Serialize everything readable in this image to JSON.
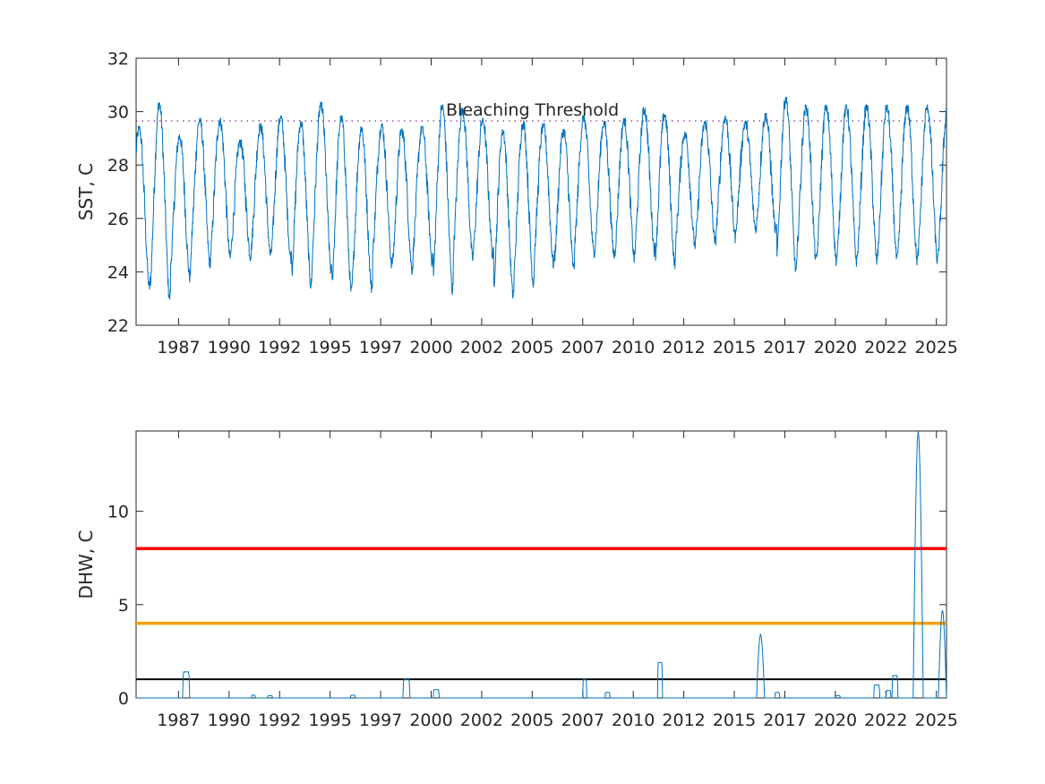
{
  "chart_data": [
    {
      "type": "line",
      "ylabel": "SST, C",
      "ylim": [
        22,
        32
      ],
      "yticks": [
        22,
        24,
        26,
        28,
        30,
        32
      ],
      "xlim": [
        1985.0,
        2025.1
      ],
      "xtick_positions": [
        1987.1,
        1989.6,
        1992.1,
        1994.6,
        1997.1,
        1999.6,
        2002.1,
        2004.6,
        2007.1,
        2009.6,
        2012.1,
        2014.6,
        2017.1,
        2019.6,
        2022.1,
        2024.6
      ],
      "xtick_labels": [
        "1987",
        "1990",
        "1992",
        "1995",
        "1997",
        "2000",
        "2002",
        "2005",
        "2007",
        "2010",
        "2012",
        "2015",
        "2017",
        "2020",
        "2022",
        "2025"
      ],
      "annotation": "Bleaching Threshold",
      "threshold": 29.65,
      "series_color": "#0072BD",
      "threshold_color": "#7E2F8E",
      "yearly_peaks": [
        29.4,
        30.3,
        29.1,
        29.7,
        29.7,
        28.9,
        29.5,
        29.8,
        29.6,
        30.3,
        29.8,
        29.4,
        29.5,
        29.3,
        29.4,
        30.2,
        30.1,
        29.7,
        29.3,
        29.6,
        29.5,
        29.3,
        29.8,
        29.6,
        29.7,
        30.1,
        29.9,
        29.2,
        29.6,
        29.8,
        29.6,
        29.9,
        30.5,
        30.2
      ],
      "yearly_troughs": [
        23.4,
        23.0,
        23.8,
        24.3,
        24.5,
        24.6,
        24.6,
        24.5,
        23.5,
        24.0,
        23.2,
        23.4,
        24.3,
        24.1,
        24.4,
        23.3,
        24.5,
        24.6,
        23.1,
        23.6,
        24.3,
        24.1,
        24.7,
        24.6,
        24.5,
        24.8,
        24.3,
        25.0,
        25.1,
        25.3,
        25.6,
        25.5,
        24.0,
        24.4
      ]
    },
    {
      "type": "line",
      "ylabel": "DHW, C",
      "ylim": [
        0,
        14.3
      ],
      "yticks": [
        0,
        5,
        10
      ],
      "xlim": [
        1985.0,
        2025.1
      ],
      "xtick_positions": [
        1987.1,
        1989.6,
        1992.1,
        1994.6,
        1997.1,
        1999.6,
        2002.1,
        2004.6,
        2007.1,
        2009.6,
        2012.1,
        2014.6,
        2017.1,
        2019.6,
        2022.1,
        2024.6
      ],
      "xtick_labels": [
        "1987",
        "1990",
        "1992",
        "1995",
        "1997",
        "2000",
        "2002",
        "2005",
        "2007",
        "2010",
        "2012",
        "2015",
        "2017",
        "2020",
        "2022",
        "2025"
      ],
      "series_color": "#0072BD",
      "reference_lines": [
        {
          "value": 8,
          "color": "#FF0000"
        },
        {
          "value": 4,
          "color": "#F5A000"
        },
        {
          "value": 1,
          "color": "#000000"
        }
      ],
      "events": [
        {
          "start": 1987.3,
          "end": 1987.65,
          "peak": 1.4
        },
        {
          "start": 1990.7,
          "end": 1990.9,
          "peak": 0.15
        },
        {
          "start": 1991.5,
          "end": 1991.75,
          "peak": 0.12
        },
        {
          "start": 1995.6,
          "end": 1995.85,
          "peak": 0.15
        },
        {
          "start": 1998.2,
          "end": 1998.55,
          "peak": 1.0
        },
        {
          "start": 1999.7,
          "end": 2000.0,
          "peak": 0.45
        },
        {
          "start": 2007.1,
          "end": 2007.3,
          "peak": 1.0
        },
        {
          "start": 2008.2,
          "end": 2008.45,
          "peak": 0.3
        },
        {
          "start": 2010.8,
          "end": 2011.05,
          "peak": 1.9
        },
        {
          "start": 2015.7,
          "end": 2016.1,
          "peak": 3.4
        },
        {
          "start": 2016.6,
          "end": 2016.85,
          "peak": 0.3
        },
        {
          "start": 2019.6,
          "end": 2019.85,
          "peak": 0.12
        },
        {
          "start": 2021.5,
          "end": 2021.8,
          "peak": 0.7
        },
        {
          "start": 2022.1,
          "end": 2022.35,
          "peak": 0.4
        },
        {
          "start": 2022.4,
          "end": 2022.7,
          "peak": 1.2
        },
        {
          "start": 2023.45,
          "end": 2023.95,
          "peak": 14.3
        },
        {
          "start": 2024.7,
          "end": 2025.1,
          "peak": 4.7
        }
      ]
    }
  ]
}
